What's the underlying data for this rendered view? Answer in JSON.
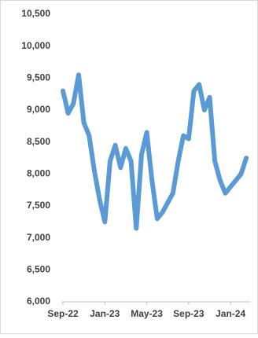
{
  "chart_data": {
    "type": "line",
    "categories": [
      "Sep-22",
      null,
      null,
      null,
      null,
      null,
      null,
      null,
      "Jan-23",
      null,
      null,
      null,
      null,
      null,
      null,
      null,
      "May-23",
      null,
      null,
      null,
      null,
      null,
      null,
      null,
      "Sep-23",
      null,
      null,
      null,
      null,
      null,
      null,
      null,
      "Jan-24",
      null,
      null,
      null
    ],
    "values": [
      9300,
      8950,
      9100,
      9550,
      8800,
      8600,
      8050,
      7600,
      7250,
      8200,
      8450,
      8100,
      8400,
      8200,
      7150,
      8300,
      8650,
      7900,
      7300,
      7400,
      7550,
      7700,
      8200,
      8600,
      8550,
      9300,
      9400,
      9000,
      9200,
      8200,
      7900,
      7700,
      7800,
      7900,
      8000,
      8250
    ],
    "color": "#5b9bd5",
    "ylim": [
      6000,
      10500
    ],
    "yticks": [
      {
        "value": 6000,
        "label": "6,000"
      },
      {
        "value": 6500,
        "label": "6,500"
      },
      {
        "value": 7000,
        "label": "7,000"
      },
      {
        "value": 7500,
        "label": "7,500"
      },
      {
        "value": 8000,
        "label": "8,000"
      },
      {
        "value": 8500,
        "label": "8,500"
      },
      {
        "value": 9000,
        "label": "9,000"
      },
      {
        "value": 9500,
        "label": "9,500"
      },
      {
        "value": 10000,
        "label": "10,000"
      },
      {
        "value": 10500,
        "label": "10,500"
      }
    ]
  }
}
